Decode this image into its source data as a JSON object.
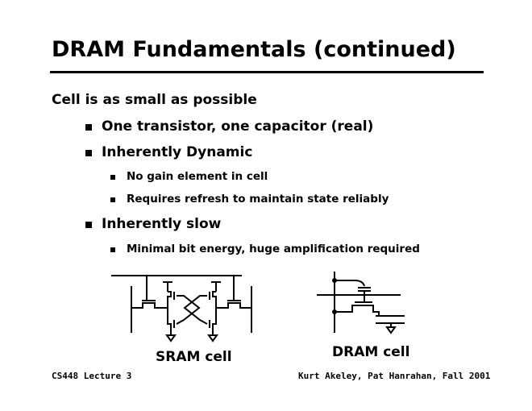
{
  "title": "DRAM Fundamentals (continued)",
  "intro": "Cell is as small as possible",
  "bullets": [
    {
      "text": "One transistor, one capacitor (real)"
    },
    {
      "text": "Inherently Dynamic",
      "sub": [
        "No gain element in cell",
        "Requires refresh to maintain state reliably"
      ]
    },
    {
      "text": "Inherently slow",
      "sub": [
        "Minimal bit energy, huge amplification required"
      ]
    }
  ],
  "figures": {
    "sram_label": "SRAM cell",
    "dram_label": "DRAM cell"
  },
  "footer": {
    "left": "CS448 Lecture 3",
    "right": "Kurt Akeley, Pat Hanrahan, Fall 2001"
  }
}
